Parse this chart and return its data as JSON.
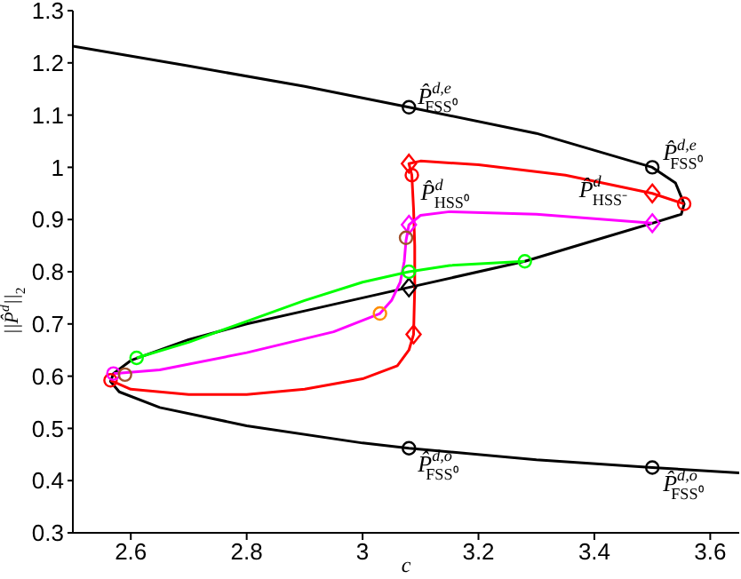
{
  "chart_data": {
    "type": "line",
    "xlabel": "c",
    "ylabel": "||P̂$^{d}$||$_{2}$",
    "xlim": [
      2.5,
      3.65
    ],
    "ylim": [
      0.3,
      1.3
    ],
    "xticks": [
      2.6,
      2.8,
      3,
      3.2,
      3.4,
      3.6
    ],
    "yticks": [
      0.3,
      0.4,
      0.5,
      0.6,
      0.7,
      0.8,
      0.9,
      1,
      1.1,
      1.2,
      1.3
    ],
    "legend": false,
    "grid": false,
    "marker": "none",
    "series": [
      {
        "type": "line",
        "color": "#000000",
        "x": [
          2.5,
          2.7,
          2.9,
          3.08,
          3.3,
          3.5,
          3.54,
          3.555,
          3.55,
          3.5,
          3.4,
          3.28,
          3.08,
          2.9,
          2.8,
          2.7,
          2.6,
          2.57,
          2.565,
          2.58,
          2.65,
          2.8,
          3.0,
          3.08,
          3.3,
          3.5,
          3.65
        ],
        "values": [
          1.232,
          1.194,
          1.155,
          1.115,
          1.065,
          1.0,
          0.97,
          0.93,
          0.91,
          0.893,
          0.86,
          0.82,
          0.77,
          0.725,
          0.7,
          0.67,
          0.63,
          0.605,
          0.59,
          0.57,
          0.54,
          0.505,
          0.472,
          0.462,
          0.44,
          0.425,
          0.415
        ]
      },
      {
        "type": "line",
        "color": "#ff0000",
        "x": [
          3.555,
          3.5,
          3.35,
          3.2,
          3.1,
          3.08,
          3.085,
          3.088,
          3.09,
          3.09,
          3.088,
          3.08,
          3.06,
          3.0,
          2.9,
          2.8,
          2.7,
          2.6,
          2.565
        ],
        "values": [
          0.93,
          0.95,
          0.985,
          1.005,
          1.012,
          1.007,
          0.985,
          0.92,
          0.85,
          0.77,
          0.68,
          0.65,
          0.62,
          0.595,
          0.575,
          0.565,
          0.565,
          0.575,
          0.592
        ]
      },
      {
        "type": "line",
        "color": "#ff00ff",
        "x": [
          3.5,
          3.3,
          3.15,
          3.1,
          3.08,
          3.075,
          3.072,
          3.065,
          3.05,
          3.03,
          2.95,
          2.8,
          2.65,
          2.57
        ],
        "values": [
          0.893,
          0.91,
          0.915,
          0.908,
          0.89,
          0.86,
          0.82,
          0.78,
          0.745,
          0.72,
          0.685,
          0.645,
          0.612,
          0.605
        ]
      },
      {
        "type": "line",
        "color": "#00ff00",
        "x": [
          3.28,
          3.15,
          3.08,
          3.0,
          2.9,
          2.8,
          2.7,
          2.61
        ],
        "values": [
          0.82,
          0.812,
          0.8,
          0.78,
          0.745,
          0.705,
          0.665,
          0.635
        ]
      },
      {
        "type": "scatter",
        "marker": "circle",
        "color": "#000000",
        "x": [
          3.08,
          3.5,
          3.08,
          3.5
        ],
        "values": [
          1.115,
          1.0,
          0.462,
          0.425
        ]
      },
      {
        "type": "scatter",
        "marker": "diamond",
        "color": "#000000",
        "x": [
          3.08
        ],
        "values": [
          0.77
        ]
      },
      {
        "type": "scatter",
        "marker": "diamond",
        "color": "#ff0000",
        "x": [
          3.08,
          3.5,
          3.088
        ],
        "values": [
          1.007,
          0.95,
          0.68
        ]
      },
      {
        "type": "scatter",
        "marker": "circle",
        "color": "#ff0000",
        "x": [
          3.555,
          2.565,
          3.085
        ],
        "values": [
          0.93,
          0.592,
          0.985
        ]
      },
      {
        "type": "scatter",
        "marker": "diamond",
        "color": "#ff00ff",
        "x": [
          3.08,
          3.5
        ],
        "values": [
          0.89,
          0.893
        ]
      },
      {
        "type": "scatter",
        "marker": "circle",
        "color": "#ff00ff",
        "x": [
          2.57
        ],
        "values": [
          0.605
        ]
      },
      {
        "type": "scatter",
        "marker": "circle",
        "color": "#00ff00",
        "x": [
          3.28,
          3.08,
          2.61
        ],
        "values": [
          0.82,
          0.8,
          0.635
        ]
      },
      {
        "type": "scatter",
        "marker": "circle",
        "color": "#a0522d",
        "x": [
          3.075,
          2.59
        ],
        "values": [
          0.865,
          0.603
        ]
      },
      {
        "type": "scatter",
        "marker": "circle",
        "color": "#ff8c00",
        "x": [
          3.03
        ],
        "values": [
          0.72
        ]
      }
    ],
    "annotations": [
      {
        "text": "P̂$^{d,e}$$_{FSS⁰}$",
        "x": 3.08,
        "y": 1.115
      },
      {
        "text": "P̂$^{d,e}$$_{FSS⁰}$",
        "x": 3.5,
        "y": 1.0
      },
      {
        "text": "P̂$^{d}$$_{HSS⁰}$",
        "x": 3.085,
        "y": 0.985
      },
      {
        "text": "P̂$^{d}$$_{HSS⁻}$",
        "x": 3.5,
        "y": 0.95
      },
      {
        "text": "P̂$^{d,o}$$_{FSS⁰}$",
        "x": 3.08,
        "y": 0.462
      },
      {
        "text": "P̂$^{d,o}$$_{FSS⁰}$",
        "x": 3.5,
        "y": 0.425
      }
    ]
  }
}
